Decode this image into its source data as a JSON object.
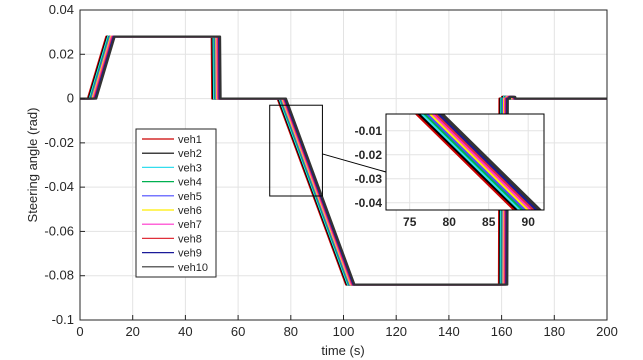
{
  "chart_data": {
    "type": "line",
    "title": "",
    "xlabel": "time (s)",
    "ylabel": "Steering angle (rad)",
    "xlim": [
      0,
      200
    ],
    "ylim": [
      -0.1,
      0.04
    ],
    "xticks": [
      0,
      20,
      40,
      60,
      80,
      100,
      120,
      140,
      160,
      180,
      200
    ],
    "yticks": [
      -0.1,
      -0.08,
      -0.06,
      -0.04,
      -0.02,
      0,
      0.02,
      0.04
    ],
    "grid": true,
    "legend_position": "left",
    "series": [
      {
        "name": "veh1",
        "color": "#cc0000",
        "offset": 0.0
      },
      {
        "name": "veh2",
        "color": "#000000",
        "offset": 0.35
      },
      {
        "name": "veh3",
        "color": "#33ddee",
        "offset": 0.7
      },
      {
        "name": "veh4",
        "color": "#00b050",
        "offset": 1.05
      },
      {
        "name": "veh5",
        "color": "#4a4aff",
        "offset": 1.4
      },
      {
        "name": "veh6",
        "color": "#ffee00",
        "offset": 1.75
      },
      {
        "name": "veh7",
        "color": "#ff33cc",
        "offset": 2.1
      },
      {
        "name": "veh8",
        "color": "#e0303a",
        "offset": 2.45
      },
      {
        "name": "veh9",
        "color": "#1a1a99",
        "offset": 2.8
      },
      {
        "name": "veh10",
        "color": "#333333",
        "offset": 3.15
      }
    ],
    "profile": [
      [
        0,
        0
      ],
      [
        3,
        0
      ],
      [
        10,
        0.028
      ],
      [
        50,
        0.028
      ],
      [
        50.2,
        0
      ],
      [
        72,
        0
      ],
      [
        75,
        0
      ],
      [
        101,
        -0.084
      ],
      [
        159,
        -0.084
      ],
      [
        159.2,
        0
      ],
      [
        160,
        0
      ],
      [
        160.2,
        0.0008
      ],
      [
        162,
        0.0008
      ],
      [
        162.2,
        0
      ],
      [
        200,
        0
      ]
    ],
    "inset": {
      "xlim": [
        72,
        92
      ],
      "ylim": [
        -0.043,
        -0.003
      ],
      "xticks": [
        75,
        80,
        85,
        90
      ],
      "yticks": [
        -0.01,
        -0.02,
        -0.03,
        -0.04
      ],
      "zoom_box_x": [
        72,
        92
      ],
      "zoom_box_y": [
        -0.044,
        -0.003
      ]
    }
  }
}
